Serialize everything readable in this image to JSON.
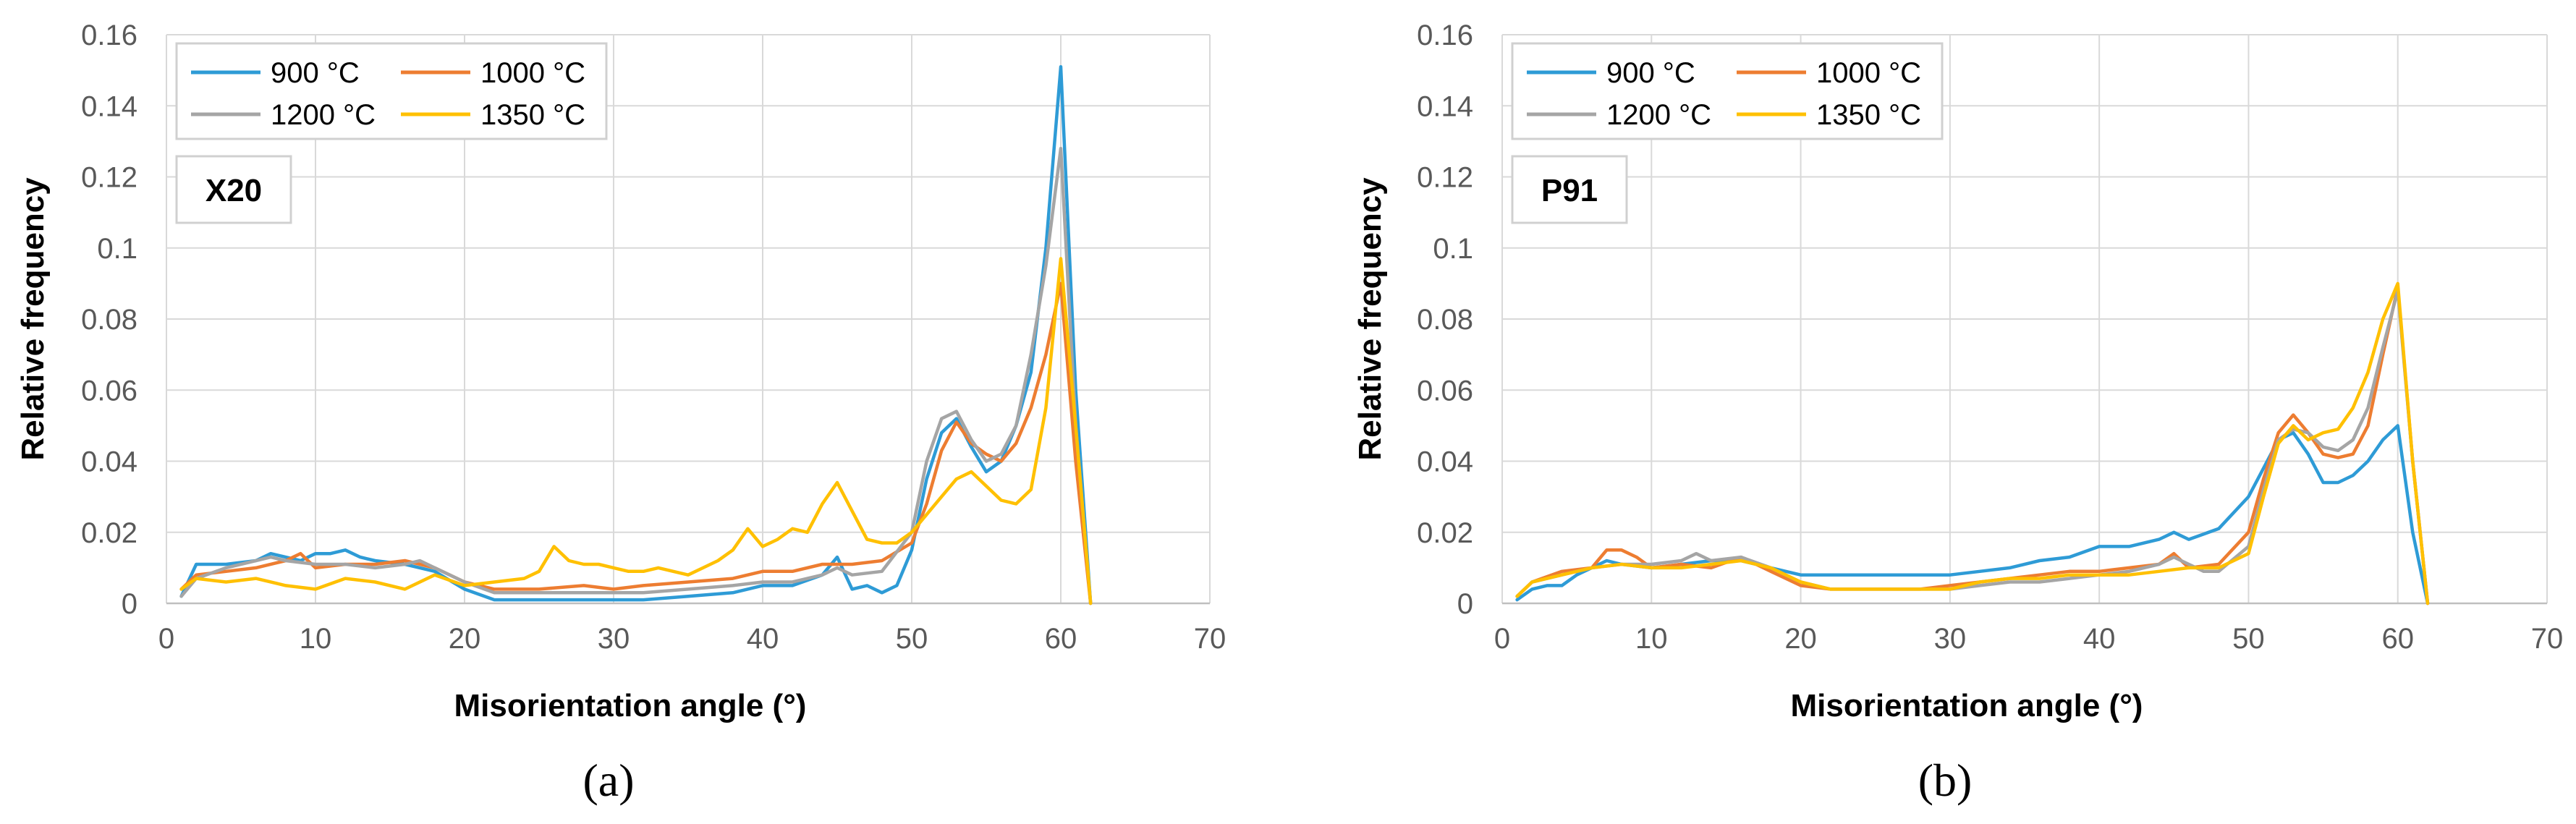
{
  "chart_data": [
    {
      "type": "line",
      "panel_label": "(a)",
      "tag": "X20",
      "xlabel": "Misorientation angle (°)",
      "ylabel": "Relative frequency",
      "xlim": [
        0,
        70
      ],
      "ylim": [
        0,
        0.16
      ],
      "xticks": [
        "0",
        "10",
        "20",
        "30",
        "40",
        "50",
        "60",
        "70"
      ],
      "yticks": [
        "0",
        "0.02",
        "0.04",
        "0.06",
        "0.08",
        "0.1",
        "0.12",
        "0.14",
        "0.16"
      ],
      "grid": true,
      "legend_position": "top-left",
      "series": [
        {
          "name": "900 °C",
          "color": "#2e9bd6",
          "x": [
            1,
            2,
            4,
            6,
            7,
            8,
            9,
            10,
            11,
            12,
            13,
            14,
            16,
            18,
            20,
            22,
            25,
            28,
            30,
            32,
            35,
            38,
            40,
            42,
            44,
            45,
            46,
            47,
            48,
            49,
            50,
            51,
            52,
            53,
            54,
            55,
            56,
            57,
            58,
            59,
            60,
            61,
            62
          ],
          "y": [
            0.002,
            0.011,
            0.011,
            0.012,
            0.014,
            0.013,
            0.012,
            0.014,
            0.014,
            0.015,
            0.013,
            0.012,
            0.011,
            0.009,
            0.004,
            0.001,
            0.001,
            0.001,
            0.001,
            0.001,
            0.002,
            0.003,
            0.005,
            0.005,
            0.008,
            0.013,
            0.004,
            0.005,
            0.003,
            0.005,
            0.015,
            0.035,
            0.048,
            0.052,
            0.044,
            0.037,
            0.04,
            0.05,
            0.065,
            0.1,
            0.151,
            0.06,
            0.0
          ]
        },
        {
          "name": "1000 °C",
          "color": "#ed7d31",
          "x": [
            1,
            2,
            4,
            6,
            8,
            9,
            10,
            12,
            14,
            16,
            18,
            20,
            22,
            25,
            28,
            30,
            32,
            35,
            38,
            40,
            42,
            44,
            46,
            48,
            50,
            51,
            52,
            53,
            54,
            55,
            56,
            57,
            58,
            59,
            60,
            61,
            62
          ],
          "y": [
            0.004,
            0.008,
            0.009,
            0.01,
            0.012,
            0.014,
            0.01,
            0.011,
            0.011,
            0.012,
            0.01,
            0.006,
            0.004,
            0.004,
            0.005,
            0.004,
            0.005,
            0.006,
            0.007,
            0.009,
            0.009,
            0.011,
            0.011,
            0.012,
            0.017,
            0.028,
            0.043,
            0.051,
            0.045,
            0.042,
            0.04,
            0.045,
            0.055,
            0.07,
            0.09,
            0.04,
            0.0
          ]
        },
        {
          "name": "1200 °C",
          "color": "#a5a5a5",
          "x": [
            1,
            2,
            4,
            6,
            7,
            8,
            10,
            12,
            14,
            16,
            17,
            18,
            20,
            22,
            25,
            28,
            30,
            32,
            35,
            38,
            40,
            42,
            44,
            45,
            46,
            48,
            50,
            51,
            52,
            53,
            54,
            55,
            56,
            57,
            58,
            59,
            60,
            61,
            62
          ],
          "y": [
            0.002,
            0.007,
            0.01,
            0.012,
            0.013,
            0.012,
            0.011,
            0.011,
            0.01,
            0.011,
            0.012,
            0.01,
            0.006,
            0.003,
            0.003,
            0.003,
            0.003,
            0.003,
            0.004,
            0.005,
            0.006,
            0.006,
            0.008,
            0.01,
            0.008,
            0.009,
            0.02,
            0.04,
            0.052,
            0.054,
            0.046,
            0.04,
            0.042,
            0.05,
            0.07,
            0.095,
            0.128,
            0.05,
            0.0
          ]
        },
        {
          "name": "1350 °C",
          "color": "#ffc000",
          "x": [
            1,
            2,
            4,
            6,
            8,
            10,
            12,
            14,
            16,
            18,
            20,
            22,
            24,
            25,
            26,
            27,
            28,
            29,
            30,
            31,
            32,
            33,
            34,
            35,
            36,
            37,
            38,
            39,
            40,
            41,
            42,
            43,
            44,
            45,
            46,
            47,
            48,
            49,
            50,
            51,
            52,
            53,
            54,
            55,
            56,
            57,
            58,
            59,
            60,
            61,
            62
          ],
          "y": [
            0.004,
            0.007,
            0.006,
            0.007,
            0.005,
            0.004,
            0.007,
            0.006,
            0.004,
            0.008,
            0.005,
            0.006,
            0.007,
            0.009,
            0.016,
            0.012,
            0.011,
            0.011,
            0.01,
            0.009,
            0.009,
            0.01,
            0.009,
            0.008,
            0.01,
            0.012,
            0.015,
            0.021,
            0.016,
            0.018,
            0.021,
            0.02,
            0.028,
            0.034,
            0.026,
            0.018,
            0.017,
            0.017,
            0.02,
            0.025,
            0.03,
            0.035,
            0.037,
            0.033,
            0.029,
            0.028,
            0.032,
            0.055,
            0.097,
            0.05,
            0.0
          ]
        }
      ]
    },
    {
      "type": "line",
      "panel_label": "(b)",
      "tag": "P91",
      "xlabel": "Misorientation angle (°)",
      "ylabel": "Relative frequency",
      "xlim": [
        0,
        70
      ],
      "ylim": [
        0,
        0.16
      ],
      "xticks": [
        "0",
        "10",
        "20",
        "30",
        "40",
        "50",
        "60",
        "70"
      ],
      "yticks": [
        "0",
        "0.02",
        "0.04",
        "0.06",
        "0.08",
        "0.1",
        "0.12",
        "0.14",
        "0.16"
      ],
      "grid": true,
      "legend_position": "top-left",
      "series": [
        {
          "name": "900 °C",
          "color": "#2e9bd6",
          "x": [
            1,
            2,
            3,
            4,
            5,
            6,
            7,
            8,
            10,
            12,
            14,
            16,
            18,
            20,
            22,
            25,
            28,
            30,
            32,
            34,
            36,
            38,
            40,
            42,
            44,
            45,
            46,
            48,
            50,
            51,
            52,
            53,
            54,
            55,
            56,
            57,
            58,
            59,
            60,
            61,
            62
          ],
          "y": [
            0.001,
            0.004,
            0.005,
            0.005,
            0.008,
            0.01,
            0.012,
            0.011,
            0.01,
            0.011,
            0.012,
            0.012,
            0.01,
            0.008,
            0.008,
            0.008,
            0.008,
            0.008,
            0.009,
            0.01,
            0.012,
            0.013,
            0.016,
            0.016,
            0.018,
            0.02,
            0.018,
            0.021,
            0.03,
            0.038,
            0.046,
            0.048,
            0.042,
            0.034,
            0.034,
            0.036,
            0.04,
            0.046,
            0.05,
            0.02,
            0.0
          ]
        },
        {
          "name": "1000 °C",
          "color": "#ed7d31",
          "x": [
            1,
            2,
            4,
            6,
            7,
            8,
            9,
            10,
            12,
            14,
            16,
            18,
            20,
            22,
            25,
            28,
            30,
            32,
            34,
            36,
            38,
            40,
            42,
            44,
            45,
            46,
            48,
            50,
            51,
            52,
            53,
            54,
            55,
            56,
            57,
            58,
            59,
            60,
            61,
            62
          ],
          "y": [
            0.002,
            0.006,
            0.009,
            0.01,
            0.015,
            0.015,
            0.013,
            0.01,
            0.011,
            0.01,
            0.013,
            0.009,
            0.005,
            0.004,
            0.004,
            0.004,
            0.005,
            0.006,
            0.007,
            0.008,
            0.009,
            0.009,
            0.01,
            0.011,
            0.014,
            0.01,
            0.011,
            0.02,
            0.035,
            0.048,
            0.053,
            0.048,
            0.042,
            0.041,
            0.042,
            0.05,
            0.07,
            0.089,
            0.04,
            0.0
          ]
        },
        {
          "name": "1200 °C",
          "color": "#a5a5a5",
          "x": [
            1,
            2,
            4,
            6,
            8,
            10,
            12,
            13,
            14,
            16,
            18,
            20,
            22,
            25,
            28,
            30,
            32,
            34,
            36,
            38,
            40,
            42,
            44,
            45,
            46,
            47,
            48,
            50,
            51,
            52,
            53,
            54,
            55,
            56,
            57,
            58,
            59,
            60,
            61,
            62
          ],
          "y": [
            0.002,
            0.006,
            0.008,
            0.01,
            0.011,
            0.011,
            0.012,
            0.014,
            0.012,
            0.013,
            0.01,
            0.006,
            0.004,
            0.004,
            0.004,
            0.004,
            0.005,
            0.006,
            0.006,
            0.007,
            0.008,
            0.009,
            0.011,
            0.013,
            0.011,
            0.009,
            0.009,
            0.016,
            0.032,
            0.046,
            0.049,
            0.048,
            0.044,
            0.043,
            0.046,
            0.055,
            0.072,
            0.088,
            0.04,
            0.0
          ]
        },
        {
          "name": "1350 °C",
          "color": "#ffc000",
          "x": [
            1,
            2,
            4,
            6,
            8,
            10,
            12,
            14,
            16,
            18,
            20,
            22,
            25,
            28,
            30,
            32,
            34,
            36,
            38,
            40,
            42,
            44,
            46,
            48,
            50,
            51,
            52,
            53,
            54,
            55,
            56,
            57,
            58,
            59,
            60,
            61,
            62
          ],
          "y": [
            0.002,
            0.006,
            0.008,
            0.01,
            0.011,
            0.01,
            0.01,
            0.011,
            0.012,
            0.01,
            0.006,
            0.004,
            0.004,
            0.004,
            0.004,
            0.006,
            0.007,
            0.007,
            0.008,
            0.008,
            0.008,
            0.009,
            0.01,
            0.01,
            0.014,
            0.03,
            0.045,
            0.05,
            0.046,
            0.048,
            0.049,
            0.055,
            0.065,
            0.08,
            0.09,
            0.04,
            0.0
          ]
        }
      ]
    }
  ]
}
